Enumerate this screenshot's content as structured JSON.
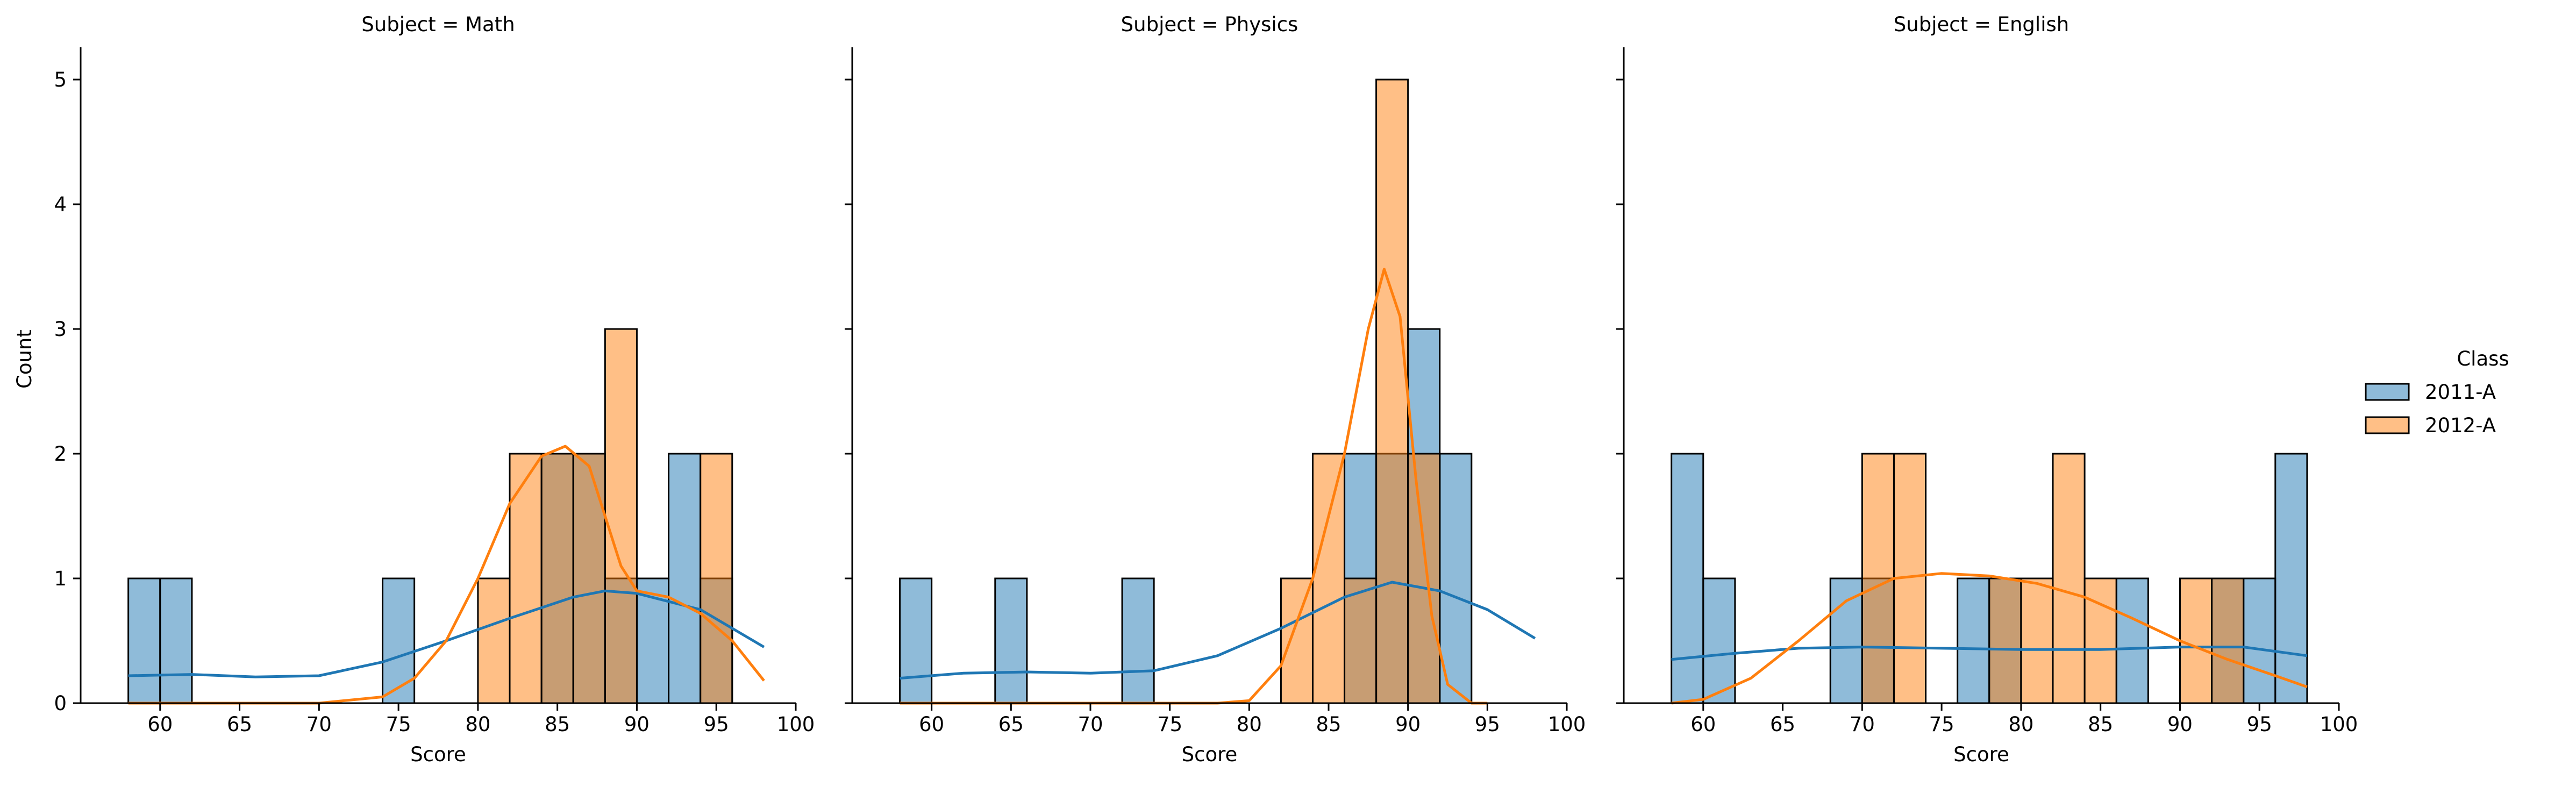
{
  "chart_data": {
    "type": "bar",
    "subtype": "faceted histogram with kde",
    "ylabel": "Count",
    "xlabel": "Score",
    "xlim": [
      55,
      100
    ],
    "ylim": [
      0,
      5.25
    ],
    "x_ticks": [
      60,
      65,
      70,
      75,
      80,
      85,
      90,
      95,
      100
    ],
    "y_ticks": [
      0,
      1,
      2,
      3,
      4,
      5
    ],
    "bin_width": 2,
    "grid": false,
    "legend": {
      "title": "Class",
      "placement": "right",
      "entries": [
        {
          "label": "2011-A",
          "color": "#1f77b4",
          "fill": "#8fb9da"
        },
        {
          "label": "2012-A",
          "color": "#ff7f0e",
          "fill": "#fdbf85"
        }
      ]
    },
    "overlap_color": "#939b98",
    "facets": [
      {
        "title": "Subject = Math",
        "series": [
          {
            "name": "2011-A",
            "bins": [
              [
                58,
                1
              ],
              [
                60,
                1
              ],
              [
                74,
                1
              ],
              [
                84,
                2
              ],
              [
                86,
                2
              ],
              [
                88,
                1
              ],
              [
                90,
                1
              ],
              [
                92,
                2
              ],
              [
                94,
                1
              ]
            ],
            "kde": [
              [
                58,
                0.22
              ],
              [
                62,
                0.23
              ],
              [
                66,
                0.21
              ],
              [
                70,
                0.22
              ],
              [
                74,
                0.33
              ],
              [
                78,
                0.5
              ],
              [
                82,
                0.68
              ],
              [
                86,
                0.85
              ],
              [
                88,
                0.9
              ],
              [
                90,
                0.88
              ],
              [
                94,
                0.75
              ],
              [
                98,
                0.45
              ]
            ]
          },
          {
            "name": "2012-A",
            "bins": [
              [
                80,
                1
              ],
              [
                82,
                2
              ],
              [
                84,
                2
              ],
              [
                86,
                2
              ],
              [
                88,
                3
              ],
              [
                94,
                2
              ]
            ],
            "kde": [
              [
                58,
                0
              ],
              [
                70,
                0
              ],
              [
                74,
                0.05
              ],
              [
                76,
                0.2
              ],
              [
                78,
                0.5
              ],
              [
                80,
                1.0
              ],
              [
                82,
                1.6
              ],
              [
                84,
                1.98
              ],
              [
                85.5,
                2.06
              ],
              [
                87,
                1.9
              ],
              [
                88,
                1.5
              ],
              [
                89,
                1.1
              ],
              [
                90,
                0.9
              ],
              [
                92,
                0.85
              ],
              [
                94,
                0.72
              ],
              [
                96,
                0.5
              ],
              [
                98,
                0.18
              ]
            ]
          }
        ]
      },
      {
        "title": "Subject = Physics",
        "series": [
          {
            "name": "2011-A",
            "bins": [
              [
                58,
                1
              ],
              [
                64,
                1
              ],
              [
                72,
                1
              ],
              [
                86,
                2
              ],
              [
                88,
                2
              ],
              [
                90,
                3
              ],
              [
                92,
                2
              ]
            ],
            "kde": [
              [
                58,
                0.2
              ],
              [
                62,
                0.24
              ],
              [
                66,
                0.25
              ],
              [
                70,
                0.24
              ],
              [
                74,
                0.26
              ],
              [
                78,
                0.38
              ],
              [
                82,
                0.6
              ],
              [
                86,
                0.85
              ],
              [
                89,
                0.97
              ],
              [
                92,
                0.9
              ],
              [
                95,
                0.75
              ],
              [
                98,
                0.52
              ]
            ]
          },
          {
            "name": "2012-A",
            "bins": [
              [
                82,
                1
              ],
              [
                84,
                2
              ],
              [
                86,
                1
              ],
              [
                88,
                5
              ],
              [
                90,
                2
              ]
            ],
            "kde": [
              [
                58,
                0
              ],
              [
                78,
                0
              ],
              [
                80,
                0.02
              ],
              [
                82,
                0.3
              ],
              [
                84,
                1.0
              ],
              [
                86,
                2.0
              ],
              [
                87.5,
                3.0
              ],
              [
                88.5,
                3.48
              ],
              [
                89.5,
                3.1
              ],
              [
                90.5,
                1.8
              ],
              [
                91.5,
                0.7
              ],
              [
                92.5,
                0.15
              ],
              [
                94,
                0
              ],
              [
                95,
                0
              ]
            ]
          }
        ]
      },
      {
        "title": "Subject = English",
        "series": [
          {
            "name": "2011-A",
            "bins": [
              [
                58,
                2
              ],
              [
                60,
                1
              ],
              [
                68,
                1
              ],
              [
                70,
                1
              ],
              [
                76,
                1
              ],
              [
                78,
                1
              ],
              [
                86,
                1
              ],
              [
                92,
                1
              ],
              [
                94,
                1
              ],
              [
                96,
                2
              ]
            ],
            "kde": [
              [
                58,
                0.35
              ],
              [
                62,
                0.4
              ],
              [
                66,
                0.44
              ],
              [
                70,
                0.45
              ],
              [
                75,
                0.44
              ],
              [
                80,
                0.43
              ],
              [
                85,
                0.43
              ],
              [
                90,
                0.45
              ],
              [
                94,
                0.45
              ],
              [
                98,
                0.38
              ]
            ]
          },
          {
            "name": "2012-A",
            "bins": [
              [
                70,
                2
              ],
              [
                72,
                2
              ],
              [
                78,
                1
              ],
              [
                80,
                1
              ],
              [
                82,
                2
              ],
              [
                84,
                1
              ],
              [
                90,
                1
              ],
              [
                92,
                1
              ]
            ],
            "kde": [
              [
                58,
                0
              ],
              [
                60,
                0.03
              ],
              [
                63,
                0.2
              ],
              [
                66,
                0.5
              ],
              [
                69,
                0.82
              ],
              [
                72,
                1.0
              ],
              [
                75,
                1.04
              ],
              [
                78,
                1.02
              ],
              [
                81,
                0.96
              ],
              [
                84,
                0.85
              ],
              [
                87,
                0.68
              ],
              [
                90,
                0.5
              ],
              [
                93,
                0.35
              ],
              [
                96,
                0.22
              ],
              [
                98,
                0.13
              ]
            ]
          }
        ]
      }
    ]
  }
}
